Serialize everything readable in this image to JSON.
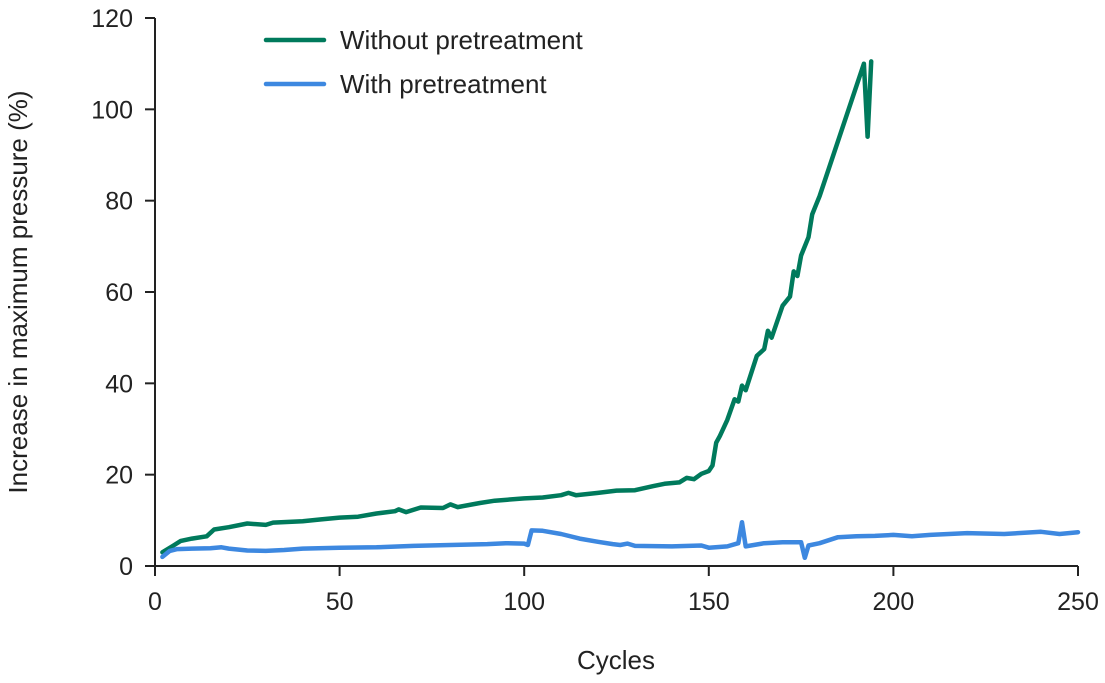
{
  "chart_data": {
    "type": "line",
    "title": "",
    "xlabel": "Cycles",
    "ylabel": "Increase in maximum pressure (%)",
    "xlim": [
      0,
      250
    ],
    "ylim": [
      0,
      120
    ],
    "xticks": [
      0,
      50,
      100,
      150,
      200,
      250
    ],
    "yticks": [
      0,
      20,
      40,
      60,
      80,
      100,
      120
    ],
    "grid": false,
    "legend_placement": "top-left",
    "series": [
      {
        "name": "Without pretreatment",
        "color": "#007a5c",
        "x": [
          2,
          3,
          5,
          7,
          10,
          14,
          16,
          20,
          25,
          30,
          32,
          40,
          45,
          50,
          55,
          60,
          65,
          66,
          68,
          72,
          78,
          80,
          82,
          88,
          92,
          100,
          105,
          110,
          112,
          114,
          120,
          125,
          130,
          135,
          138,
          142,
          144,
          146,
          148,
          150,
          151,
          152,
          153,
          155,
          157,
          158,
          159,
          160,
          163,
          165,
          166,
          167,
          170,
          172,
          173,
          174,
          175,
          177,
          178,
          179,
          180,
          192,
          193,
          194
        ],
        "y": [
          3,
          3.5,
          4.5,
          5.5,
          6,
          6.5,
          8,
          8.5,
          9.3,
          9,
          9.5,
          9.8,
          10.2,
          10.6,
          10.8,
          11.5,
          12,
          12.4,
          11.8,
          12.8,
          12.7,
          13.5,
          12.9,
          13.8,
          14.3,
          14.8,
          15,
          15.5,
          16,
          15.5,
          16,
          16.5,
          16.6,
          17.5,
          18,
          18.3,
          19.3,
          19,
          20.2,
          20.8,
          22,
          27,
          28.5,
          32,
          36.5,
          36,
          39.5,
          38.5,
          46,
          47.5,
          51.5,
          50,
          57,
          59,
          64.5,
          63.5,
          68,
          72,
          77,
          79,
          81,
          110,
          94,
          110.5
        ]
      },
      {
        "name": "With pretreatment",
        "color": "#3d88e0",
        "x": [
          2,
          4,
          6,
          10,
          15,
          18,
          20,
          25,
          30,
          35,
          40,
          50,
          60,
          70,
          80,
          90,
          95,
          100,
          101,
          102,
          105,
          110,
          115,
          120,
          124,
          126,
          128,
          130,
          140,
          148,
          150,
          155,
          158,
          159,
          160,
          165,
          170,
          175,
          176,
          177,
          180,
          185,
          190,
          195,
          200,
          205,
          210,
          215,
          220,
          230,
          240,
          245,
          250
        ],
        "y": [
          2,
          3.3,
          3.7,
          3.8,
          3.9,
          4.1,
          3.8,
          3.4,
          3.3,
          3.5,
          3.8,
          4,
          4.1,
          4.4,
          4.6,
          4.8,
          5,
          4.9,
          4.6,
          7.8,
          7.7,
          7,
          6,
          5.3,
          4.8,
          4.6,
          4.9,
          4.4,
          4.3,
          4.5,
          4,
          4.3,
          5,
          9.6,
          4.3,
          5,
          5.2,
          5.2,
          1.8,
          4.5,
          5,
          6.3,
          6.5,
          6.6,
          6.8,
          6.5,
          6.8,
          7,
          7.2,
          7,
          7.5,
          7,
          7.4
        ]
      }
    ]
  }
}
